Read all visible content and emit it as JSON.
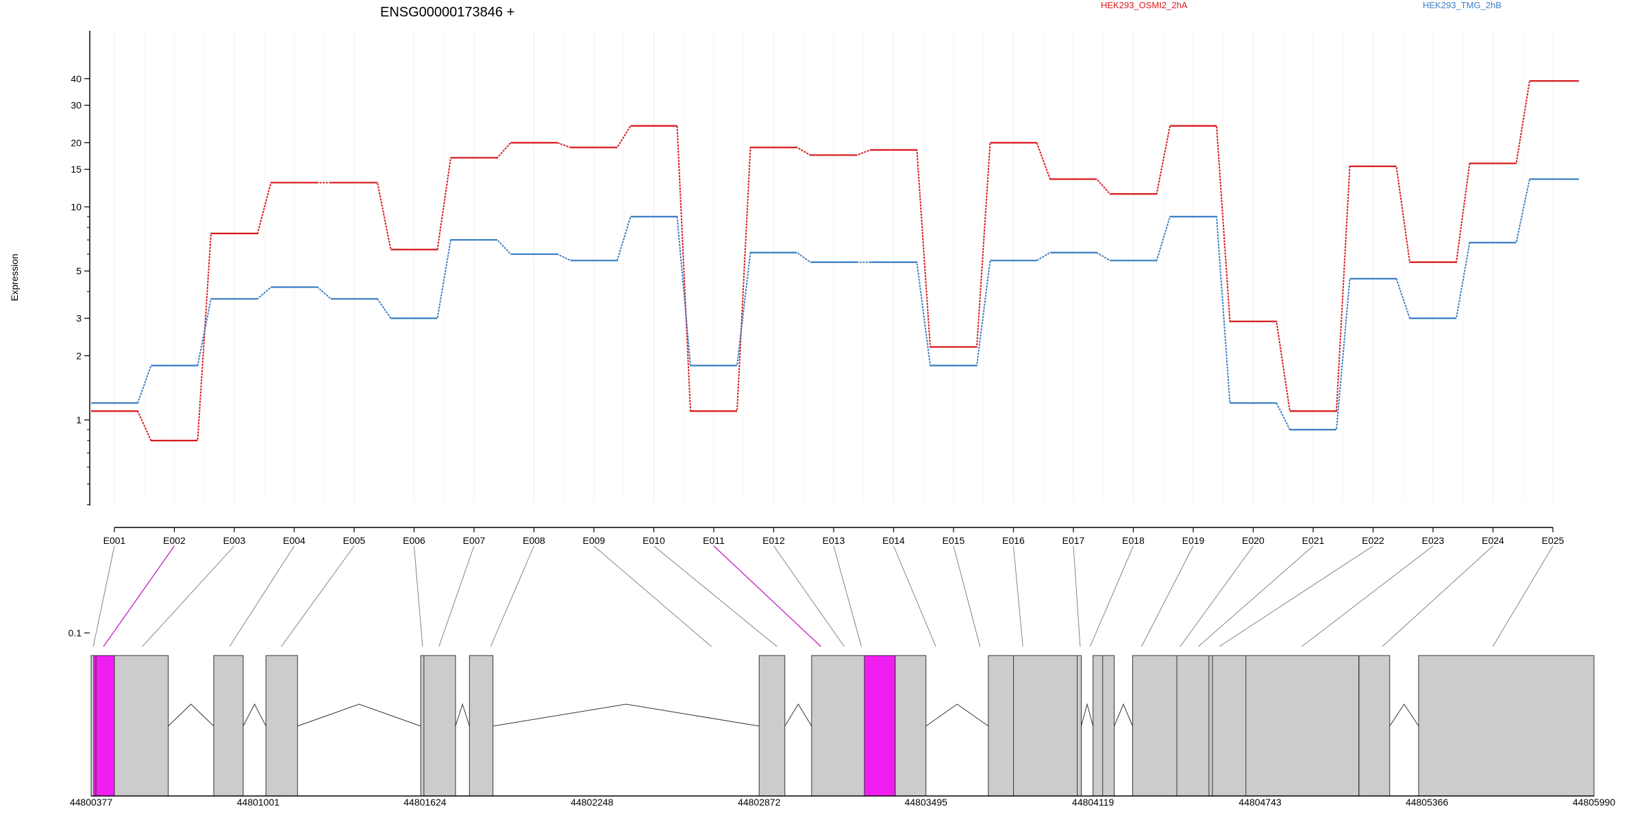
{
  "chart_data": {
    "type": "line",
    "title": "ENSG00000173846 +",
    "ylabel": "Expression",
    "y_scale": "log",
    "ylim": [
      0.08,
      45
    ],
    "y_ticks": [
      0.1,
      1,
      2,
      3,
      5,
      10,
      15,
      20,
      30,
      40
    ],
    "y_tick_labels": [
      "0.1",
      "1",
      "2",
      "3",
      "5",
      "10",
      "15",
      "20",
      "30",
      "40"
    ],
    "categories": [
      "E001",
      "E002",
      "E003",
      "E004",
      "E005",
      "E006",
      "E007",
      "E008",
      "E009",
      "E010",
      "E011",
      "E012",
      "E013",
      "E014",
      "E015",
      "E016",
      "E017",
      "E018",
      "E019",
      "E020",
      "E021",
      "E022",
      "E023",
      "E024",
      "E025"
    ],
    "series": [
      {
        "name": "HEK293_OSMI2_2hA",
        "color": "#d7191c",
        "values": [
          1.1,
          0.8,
          7.5,
          13.0,
          13.0,
          6.3,
          17.0,
          20.0,
          19.0,
          24.0,
          1.1,
          19.0,
          17.5,
          18.5,
          2.2,
          20.0,
          13.5,
          11.5,
          24.0,
          2.9,
          1.1,
          15.5,
          5.5,
          16.0,
          39.0
        ]
      },
      {
        "name": "HEK293_TMG_2hB",
        "color": "#3b7fc4",
        "values": [
          1.2,
          1.8,
          3.7,
          4.2,
          3.7,
          3.0,
          7.0,
          6.0,
          5.6,
          9.0,
          1.8,
          6.1,
          5.5,
          5.5,
          1.8,
          5.6,
          6.1,
          5.6,
          9.0,
          1.2,
          0.9,
          4.6,
          3.0,
          6.8,
          13.5
        ]
      }
    ],
    "grid": "vertical-light",
    "legend_position": "top-right",
    "genomic_axis": {
      "ticks": [
        44800377,
        44801001,
        44801624,
        44802248,
        44802872,
        44803495,
        44804119,
        44804743,
        44805366,
        44805990
      ],
      "tick_labels": [
        "44800377",
        "44801001",
        "44801624",
        "44802248",
        "44802872",
        "44803495",
        "44804119",
        "44804743",
        "44805366",
        "44805990"
      ],
      "range": [
        44800377,
        44805990
      ]
    },
    "exon_blocks": [
      {
        "start": 44800377,
        "end": 44800665
      },
      {
        "start": 44800835,
        "end": 44800945
      },
      {
        "start": 44801030,
        "end": 44801148
      },
      {
        "start": 44801608,
        "end": 44801738
      },
      {
        "start": 44801790,
        "end": 44801878
      },
      {
        "start": 44802872,
        "end": 44802968
      },
      {
        "start": 44803068,
        "end": 44803495
      },
      {
        "start": 44803728,
        "end": 44804075
      },
      {
        "start": 44804119,
        "end": 44804198
      },
      {
        "start": 44804267,
        "end": 44805112
      },
      {
        "start": 44805112,
        "end": 44805227
      },
      {
        "start": 44805335,
        "end": 44805990
      }
    ],
    "exon_dividers": [
      44800395,
      44801620,
      44803380,
      44803822,
      44804060,
      44804155,
      44804432,
      44804552,
      44804565,
      44804690,
      44805112
    ],
    "highlighted_regions": [
      {
        "start": 44800387,
        "end": 44800464,
        "color": "#f01ef0"
      },
      {
        "start": 44803265,
        "end": 44803380,
        "color": "#f01ef0"
      }
    ],
    "exon_connectors": [
      44800385,
      44800423,
      44800568,
      44800894,
      44801087,
      44801615,
      44801676,
      44801869,
      44802694,
      44802939,
      44803103,
      44803190,
      44803254,
      44803532,
      44803697,
      44803857,
      44804071,
      44804108,
      44804300,
      44804444,
      44804512,
      44804590,
      44804898,
      44805199,
      44805612
    ],
    "highlighted_connectors": [
      1,
      10
    ],
    "highlight_color": "#c020c0",
    "introns": [
      {
        "start": 44800665,
        "end": 44800835
      },
      {
        "start": 44800945,
        "end": 44801030
      },
      {
        "start": 44801148,
        "end": 44801608
      },
      {
        "start": 44801738,
        "end": 44801790
      },
      {
        "start": 44801878,
        "end": 44802872
      },
      {
        "start": 44802968,
        "end": 44803068
      },
      {
        "start": 44803495,
        "end": 44803728
      },
      {
        "start": 44804075,
        "end": 44804119
      },
      {
        "start": 44804198,
        "end": 44804267
      },
      {
        "start": 44805227,
        "end": 44805335
      }
    ]
  }
}
